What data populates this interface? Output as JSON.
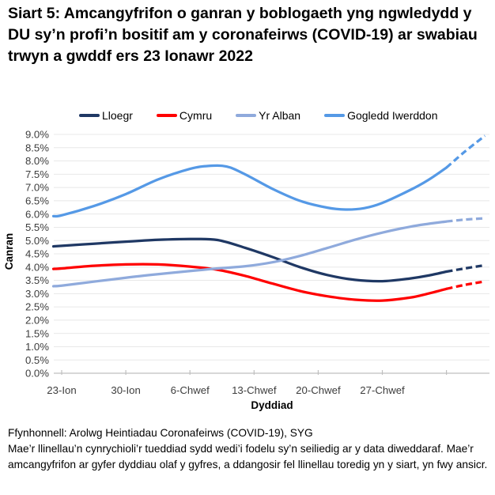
{
  "chart_data": {
    "type": "line",
    "title": "Siart 5: Amcangyfrifon o ganran y boblogaeth yng ngwledydd y DU sy’n profi’n bositif am y coronafeirws (COVID-19) ar swabiau trwyn a gwddf ers 23 Ionawr 2022",
    "xlabel": "Dyddiad",
    "ylabel": "Canran",
    "ylim": [
      0,
      9.0
    ],
    "ytick_step": 0.5,
    "ytick_format": "0.0%",
    "grid": true,
    "legend_position": "top",
    "x_unit": "days since 23 Ionawr 2022",
    "xtick_days": [
      0,
      7,
      14,
      21,
      28,
      35,
      42
    ],
    "xtick_labels": [
      "23-Ion",
      "30-Ion",
      "6-Chwef",
      "13-Chwef",
      "20-Chwef",
      "27-Chwef",
      ""
    ],
    "dashed_note": "dashed tail = llinellau toredig (estimates for the last days, more uncertain)",
    "series": [
      {
        "name": "Lloegr",
        "color": "#1F3864",
        "solid": [
          [
            -0.9,
            4.78
          ],
          [
            0,
            4.8
          ],
          [
            3.5,
            4.88
          ],
          [
            7,
            4.96
          ],
          [
            10.5,
            5.03
          ],
          [
            14,
            5.06
          ],
          [
            17,
            5.02
          ],
          [
            20,
            4.73
          ],
          [
            23,
            4.38
          ],
          [
            26,
            4.0
          ],
          [
            29,
            3.7
          ],
          [
            32,
            3.52
          ],
          [
            35,
            3.47
          ],
          [
            38,
            3.57
          ],
          [
            40,
            3.68
          ],
          [
            42,
            3.83
          ]
        ],
        "dashed": [
          [
            42,
            3.83
          ],
          [
            44,
            3.95
          ],
          [
            46.2,
            4.07
          ]
        ]
      },
      {
        "name": "Cymru",
        "color": "#FF0000",
        "solid": [
          [
            -0.9,
            3.93
          ],
          [
            0,
            3.95
          ],
          [
            3.5,
            4.05
          ],
          [
            7,
            4.1
          ],
          [
            10.5,
            4.1
          ],
          [
            14,
            4.02
          ],
          [
            17,
            3.9
          ],
          [
            20,
            3.67
          ],
          [
            23,
            3.38
          ],
          [
            26,
            3.1
          ],
          [
            29,
            2.9
          ],
          [
            32,
            2.77
          ],
          [
            35,
            2.74
          ],
          [
            38,
            2.85
          ],
          [
            40,
            3.0
          ],
          [
            42,
            3.18
          ]
        ],
        "dashed": [
          [
            42,
            3.18
          ],
          [
            44,
            3.33
          ],
          [
            46.2,
            3.46
          ]
        ]
      },
      {
        "name": "Yr Alban",
        "color": "#8FAADC",
        "solid": [
          [
            -0.9,
            3.28
          ],
          [
            0,
            3.3
          ],
          [
            3.5,
            3.45
          ],
          [
            7,
            3.6
          ],
          [
            10.5,
            3.73
          ],
          [
            14,
            3.85
          ],
          [
            17,
            3.95
          ],
          [
            20,
            4.03
          ],
          [
            23,
            4.18
          ],
          [
            26,
            4.42
          ],
          [
            29,
            4.72
          ],
          [
            32,
            5.03
          ],
          [
            35,
            5.3
          ],
          [
            38,
            5.52
          ],
          [
            40,
            5.63
          ],
          [
            42,
            5.72
          ]
        ],
        "dashed": [
          [
            42,
            5.72
          ],
          [
            44,
            5.79
          ],
          [
            46.2,
            5.84
          ]
        ]
      },
      {
        "name": "Gogledd Iwerddon",
        "color": "#5599E6",
        "solid": [
          [
            -0.9,
            5.92
          ],
          [
            0,
            5.95
          ],
          [
            3.5,
            6.3
          ],
          [
            7,
            6.75
          ],
          [
            10.5,
            7.3
          ],
          [
            14,
            7.7
          ],
          [
            16,
            7.81
          ],
          [
            18,
            7.79
          ],
          [
            20,
            7.5
          ],
          [
            23,
            6.95
          ],
          [
            26,
            6.5
          ],
          [
            29,
            6.24
          ],
          [
            31,
            6.17
          ],
          [
            33,
            6.22
          ],
          [
            35,
            6.42
          ],
          [
            38,
            6.9
          ],
          [
            40,
            7.28
          ],
          [
            42,
            7.75
          ]
        ],
        "dashed": [
          [
            42,
            7.75
          ],
          [
            44,
            8.35
          ],
          [
            46.2,
            8.95
          ]
        ]
      }
    ]
  },
  "footer": {
    "source": "Ffynhonnell: Arolwg Heintiadau Coronafeirws (COVID-19), SYG",
    "note": "Mae’r llinellau’n cynrychioli’r tueddiad sydd wedi’i fodelu sy’n seiliedig ar y data diweddaraf. Mae’r amcangyfrifon ar gyfer dyddiau olaf y gyfres, a ddangosir fel llinellau toredig yn y siart, yn fwy ansicr."
  }
}
